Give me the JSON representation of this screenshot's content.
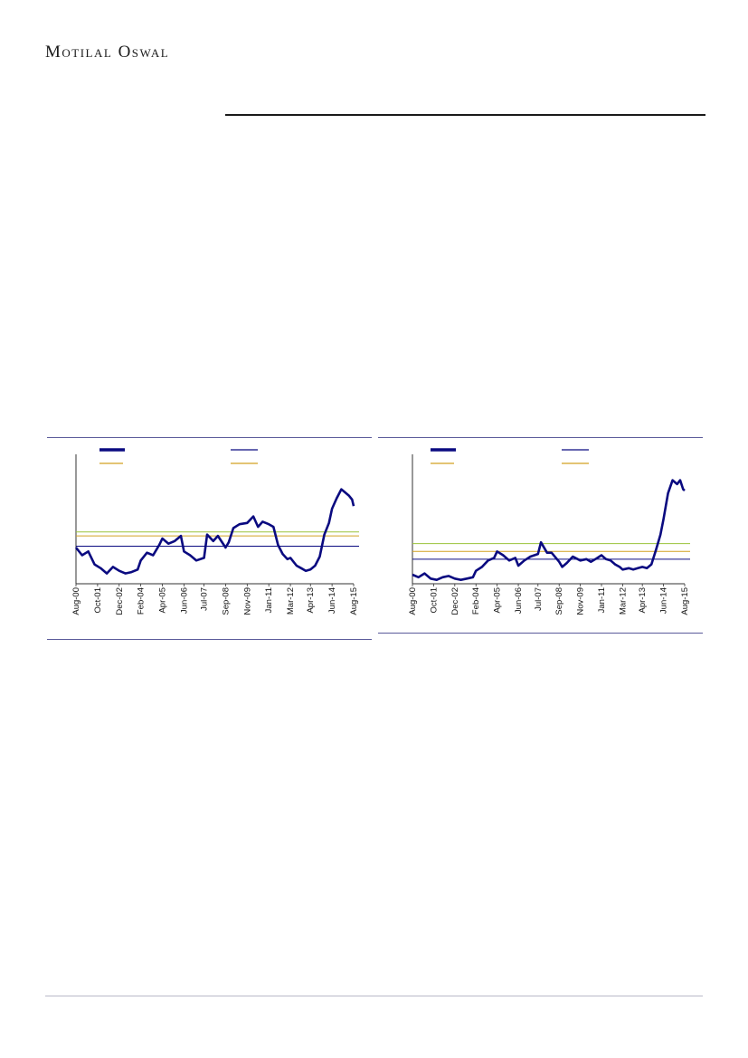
{
  "header": {
    "logo_text": "Motilal Oswal"
  },
  "colors": {
    "series": "#0a0a80",
    "mean": "#0a0a80",
    "band_green": "#9ac23a",
    "band_gold": "#d2a020",
    "panel_rule": "#5a5a9a"
  },
  "chart_data": [
    {
      "type": "line",
      "title": "",
      "xlabel": "",
      "ylabel": "",
      "x_ticks": [
        "Aug-00",
        "Oct-01",
        "Dec-02",
        "Feb-04",
        "Apr-05",
        "Jun-06",
        "Jul-07",
        "Sep-08",
        "Nov-09",
        "Jan-11",
        "Mar-12",
        "Apr-13",
        "Jun-14",
        "Aug-15"
      ],
      "y_scale": "relative (axis unlabeled)",
      "ylim": [
        0,
        100
      ],
      "grid": false,
      "legend": "top, 2 columns, labels not legible",
      "reference_lines": {
        "mean": 29,
        "upper_1": 40,
        "upper_2": 37
      },
      "series": [
        {
          "x": [
            "Aug-00",
            "Dec-00",
            "Apr-01",
            "Aug-01",
            "Dec-01",
            "Apr-02",
            "Aug-02",
            "Dec-02",
            "Apr-03",
            "Aug-03",
            "Dec-03",
            "Feb-04",
            "Jun-04",
            "Oct-04",
            "Feb-05",
            "Apr-05",
            "Aug-05",
            "Dec-05",
            "Apr-06",
            "Jun-06",
            "Oct-06",
            "Feb-07",
            "Jul-07",
            "Sep-07",
            "Jan-08",
            "Apr-08",
            "Sep-08",
            "Nov-08",
            "Feb-09",
            "Jun-09",
            "Nov-09",
            "Mar-10",
            "Jun-10",
            "Sep-10",
            "Jan-11",
            "Apr-11",
            "Jul-11",
            "Oct-11",
            "Jan-12",
            "Mar-12",
            "Jul-12",
            "Oct-12",
            "Jan-13",
            "Apr-13",
            "Jul-13",
            "Oct-13",
            "Jan-14",
            "Apr-14",
            "Jun-14",
            "Sep-14",
            "Dec-14",
            "Mar-15",
            "May-15",
            "Jul-15",
            "Aug-15"
          ],
          "values": [
            28,
            22,
            25,
            15,
            12,
            8,
            13,
            10,
            8,
            9,
            11,
            18,
            24,
            22,
            30,
            35,
            31,
            33,
            37,
            25,
            22,
            18,
            20,
            38,
            33,
            37,
            28,
            32,
            43,
            46,
            47,
            52,
            44,
            48,
            46,
            44,
            30,
            23,
            19,
            20,
            14,
            12,
            10,
            11,
            14,
            21,
            38,
            47,
            58,
            66,
            73,
            70,
            68,
            65,
            60
          ]
        }
      ]
    },
    {
      "type": "line",
      "title": "",
      "xlabel": "",
      "ylabel": "",
      "x_ticks": [
        "Aug-00",
        "Oct-01",
        "Dec-02",
        "Feb-04",
        "Apr-05",
        "Jun-06",
        "Jul-07",
        "Sep-08",
        "Nov-09",
        "Jan-11",
        "Mar-12",
        "Apr-13",
        "Jun-14",
        "Aug-15"
      ],
      "y_scale": "relative (axis unlabeled)",
      "ylim": [
        0,
        100
      ],
      "grid": false,
      "legend": "top, 2 columns, labels not legible",
      "reference_lines": {
        "mean": 19,
        "upper_1": 31,
        "upper_2": 25
      },
      "series": [
        {
          "x": [
            "Aug-00",
            "Dec-00",
            "Apr-01",
            "Aug-01",
            "Dec-01",
            "Apr-02",
            "Aug-02",
            "Dec-02",
            "Apr-03",
            "Aug-03",
            "Dec-03",
            "Feb-04",
            "Jun-04",
            "Oct-04",
            "Feb-05",
            "Apr-05",
            "Aug-05",
            "Dec-05",
            "Apr-06",
            "Jun-06",
            "Oct-06",
            "Feb-07",
            "Jul-07",
            "Sep-07",
            "Jan-08",
            "Apr-08",
            "Sep-08",
            "Nov-08",
            "Feb-09",
            "Jun-09",
            "Nov-09",
            "Mar-10",
            "Jun-10",
            "Sep-10",
            "Jan-11",
            "Apr-11",
            "Jul-11",
            "Oct-11",
            "Jan-12",
            "Mar-12",
            "Jul-12",
            "Oct-12",
            "Jan-13",
            "Apr-13",
            "Jul-13",
            "Oct-13",
            "Jan-14",
            "Apr-14",
            "Jun-14",
            "Sep-14",
            "Dec-14",
            "Mar-15",
            "May-15",
            "Jul-15",
            "Aug-15"
          ],
          "values": [
            7,
            5,
            8,
            4,
            3,
            5,
            6,
            4,
            3,
            4,
            5,
            10,
            13,
            18,
            20,
            25,
            22,
            18,
            20,
            14,
            18,
            21,
            23,
            32,
            24,
            24,
            17,
            13,
            16,
            21,
            18,
            19,
            17,
            19,
            22,
            19,
            18,
            15,
            13,
            11,
            12,
            11,
            12,
            13,
            12,
            15,
            26,
            38,
            50,
            70,
            80,
            77,
            80,
            73,
            72
          ]
        }
      ]
    }
  ]
}
